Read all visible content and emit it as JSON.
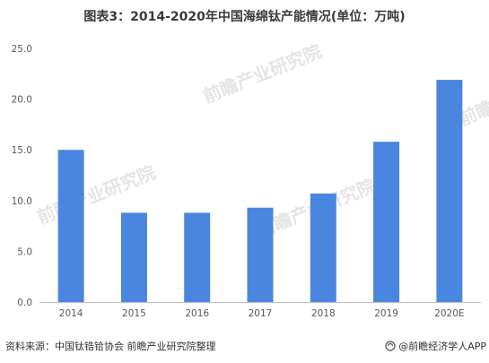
{
  "title": "图表3：2014-2020年中国海绵钛产能情况(单位：万吨)",
  "chart_data": {
    "type": "bar",
    "categories": [
      "2014",
      "2015",
      "2016",
      "2017",
      "2018",
      "2019",
      "2020E"
    ],
    "values": [
      15.0,
      8.8,
      8.8,
      9.3,
      10.7,
      15.8,
      21.9
    ],
    "ylim": [
      0,
      25
    ],
    "yticks": [
      "0.0",
      "5.0",
      "10.0",
      "15.0",
      "20.0",
      "25.0"
    ],
    "grid": false,
    "bar_color": "#4a86e0"
  },
  "footer": {
    "source": "资料来源：中国钛锆铪协会 前瞻产业研究院整理",
    "brand": "@前瞻经济学人APP"
  },
  "watermark": "前瞻产业研究院",
  "colors": {
    "bar": "#4a86e0",
    "axis": "#bfbfbf",
    "text": "#595959"
  }
}
